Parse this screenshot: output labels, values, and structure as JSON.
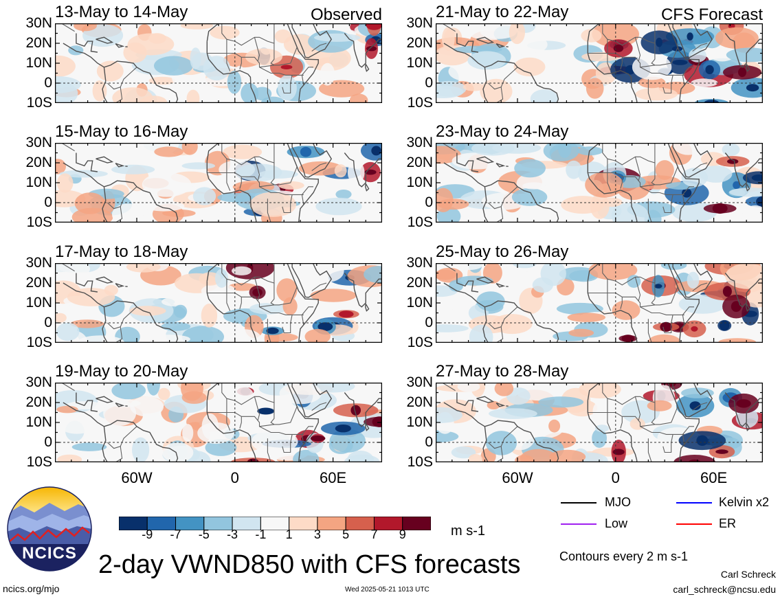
{
  "panels_left": [
    {
      "title": "13-May to 14-May",
      "corner": "Observed"
    },
    {
      "title": "15-May to 16-May",
      "corner": ""
    },
    {
      "title": "17-May to 18-May",
      "corner": ""
    },
    {
      "title": "19-May to 20-May",
      "corner": ""
    }
  ],
  "panels_right": [
    {
      "title": "21-May to 22-May",
      "corner": "CFS Forecast"
    },
    {
      "title": "23-May to 24-May",
      "corner": ""
    },
    {
      "title": "25-May to 26-May",
      "corner": ""
    },
    {
      "title": "27-May to 28-May",
      "corner": ""
    }
  ],
  "lat_labels": [
    "30N",
    "20N",
    "10N",
    "0",
    "10S"
  ],
  "lon_labels": [
    "60W",
    "0",
    "60E"
  ],
  "colorbar": {
    "ticks": [
      "-9",
      "-7",
      "-5",
      "-3",
      "-1",
      "1",
      "3",
      "5",
      "7",
      "9"
    ],
    "colors": [
      "#08306b",
      "#2166ac",
      "#4393c3",
      "#92c5de",
      "#d1e5f0",
      "#f7f7f7",
      "#fddbc7",
      "#f4a582",
      "#d6604d",
      "#b2182b",
      "#67001f"
    ],
    "units": "m s-1"
  },
  "legend": [
    {
      "label": "MJO",
      "color": "#000000"
    },
    {
      "label": "Kelvin x2",
      "color": "#0000ff"
    },
    {
      "label": "Low",
      "color": "#a020f0"
    },
    {
      "label": "ER",
      "color": "#ff0000"
    }
  ],
  "contours_note": "Contours every 2 m s-1",
  "title": "2-day VWND850 with CFS forecasts",
  "logo_text": "NCICS",
  "site": "ncics.org/mjo",
  "timestamp": "Wed 2025-05-21 1013 UTC",
  "author": "Carl Schreck",
  "email": "carl_schreck@ncsu.edu"
}
